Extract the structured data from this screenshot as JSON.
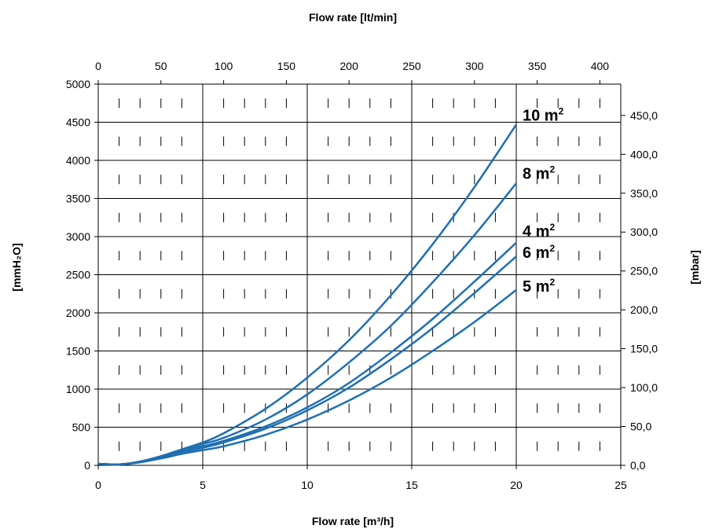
{
  "chart_data": {
    "type": "line",
    "colors": {
      "line": "#1f6fb2",
      "grid": "#000000",
      "background": "#ffffff"
    },
    "grid": true,
    "x_bottom": {
      "label": "Flow rate [m³/h]",
      "range": [
        0,
        25
      ],
      "ticks": [
        "0",
        "5",
        "10",
        "15",
        "20",
        "25"
      ]
    },
    "x_top": {
      "label": "Flow rate [lt/min]",
      "range": [
        0,
        416.67
      ],
      "ticks": [
        "0",
        "50",
        "100",
        "150",
        "200",
        "250",
        "300",
        "350",
        "400"
      ]
    },
    "y_left": {
      "label": "[mmH₂O]",
      "range": [
        0,
        5000
      ],
      "ticks": [
        "0",
        "500",
        "1000",
        "1500",
        "2000",
        "2500",
        "3000",
        "3500",
        "4000",
        "4500",
        "5000"
      ]
    },
    "y_right": {
      "label": "[mbar]",
      "range": [
        0,
        490.3
      ],
      "ticks": [
        "0,0",
        "50,0",
        "100,0",
        "150,0",
        "200,0",
        "250,0",
        "300,0",
        "350,0",
        "400,0",
        "450,0"
      ]
    },
    "series": [
      {
        "name": "10 m²",
        "points": [
          [
            0,
            20
          ],
          [
            1,
            12
          ],
          [
            2,
            50
          ],
          [
            3,
            120
          ],
          [
            4,
            210
          ],
          [
            5,
            300
          ],
          [
            6,
            420
          ],
          [
            8,
            740
          ],
          [
            10,
            1150
          ],
          [
            12,
            1640
          ],
          [
            14,
            2230
          ],
          [
            16,
            2900
          ],
          [
            18,
            3650
          ],
          [
            20,
            4470
          ]
        ]
      },
      {
        "name": "8 m²",
        "points": [
          [
            0,
            20
          ],
          [
            1,
            12
          ],
          [
            2,
            45
          ],
          [
            3,
            115
          ],
          [
            4,
            200
          ],
          [
            5,
            280
          ],
          [
            6,
            360
          ],
          [
            8,
            600
          ],
          [
            10,
            930
          ],
          [
            12,
            1350
          ],
          [
            14,
            1830
          ],
          [
            16,
            2400
          ],
          [
            18,
            3020
          ],
          [
            20,
            3700
          ]
        ]
      },
      {
        "name": "4 m²",
        "points": [
          [
            0,
            20
          ],
          [
            1,
            12
          ],
          [
            2,
            45
          ],
          [
            3,
            110
          ],
          [
            4,
            190
          ],
          [
            5,
            250
          ],
          [
            6,
            320
          ],
          [
            8,
            510
          ],
          [
            10,
            760
          ],
          [
            12,
            1080
          ],
          [
            14,
            1480
          ],
          [
            16,
            1920
          ],
          [
            18,
            2410
          ],
          [
            20,
            2920
          ]
        ]
      },
      {
        "name": "6 m²",
        "points": [
          [
            0,
            20
          ],
          [
            1,
            12
          ],
          [
            2,
            40
          ],
          [
            3,
            100
          ],
          [
            4,
            170
          ],
          [
            5,
            230
          ],
          [
            6,
            300
          ],
          [
            8,
            480
          ],
          [
            10,
            720
          ],
          [
            12,
            1020
          ],
          [
            14,
            1390
          ],
          [
            16,
            1800
          ],
          [
            18,
            2260
          ],
          [
            20,
            2740
          ]
        ]
      },
      {
        "name": "5 m²",
        "points": [
          [
            0,
            20
          ],
          [
            1,
            12
          ],
          [
            2,
            40
          ],
          [
            3,
            90
          ],
          [
            4,
            150
          ],
          [
            5,
            200
          ],
          [
            6,
            250
          ],
          [
            8,
            400
          ],
          [
            10,
            600
          ],
          [
            12,
            850
          ],
          [
            14,
            1150
          ],
          [
            16,
            1500
          ],
          [
            18,
            1880
          ],
          [
            20,
            2300
          ]
        ]
      }
    ],
    "series_label_positions": [
      {
        "name": "10 m²",
        "at": [
          20.3,
          4520
        ]
      },
      {
        "name": "8 m²",
        "at": [
          20.3,
          3760
        ]
      },
      {
        "name": "4 m²",
        "at": [
          20.3,
          3000
        ]
      },
      {
        "name": "6 m²",
        "at": [
          20.3,
          2720
        ]
      },
      {
        "name": "5 m²",
        "at": [
          20.3,
          2280
        ]
      }
    ]
  }
}
